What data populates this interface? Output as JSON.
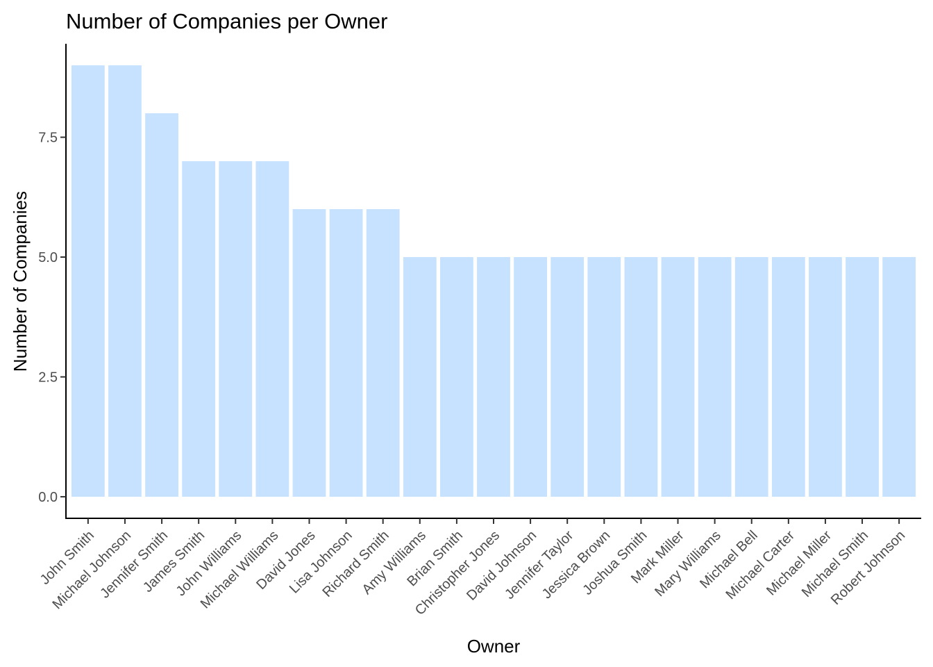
{
  "chart_data": {
    "type": "bar",
    "title": "Number of Companies per Owner",
    "xlabel": "Owner",
    "ylabel": "Number of Companies",
    "categories": [
      "John Smith",
      "Michael Johnson",
      "Jennifer Smith",
      "James Smith",
      "John Williams",
      "Michael Williams",
      "David Jones",
      "Lisa Johnson",
      "Richard Smith",
      "Amy Williams",
      "Brian Smith",
      "Christopher Jones",
      "David Johnson",
      "Jennifer Taylor",
      "Jessica Brown",
      "Joshua Smith",
      "Mark Miller",
      "Mary Williams",
      "Michael Bell",
      "Michael Carter",
      "Michael Miller",
      "Michael Smith",
      "Robert Johnson"
    ],
    "values": [
      9,
      9,
      8,
      7,
      7,
      7,
      6,
      6,
      6,
      5,
      5,
      5,
      5,
      5,
      5,
      5,
      5,
      5,
      5,
      5,
      5,
      5,
      5
    ],
    "yticks": [
      "0.0",
      "2.5",
      "5.0",
      "7.5"
    ],
    "ylim": [
      -0.45,
      9.45
    ],
    "bar_color": "#c6e2ff",
    "grid": false,
    "legend": "none"
  }
}
